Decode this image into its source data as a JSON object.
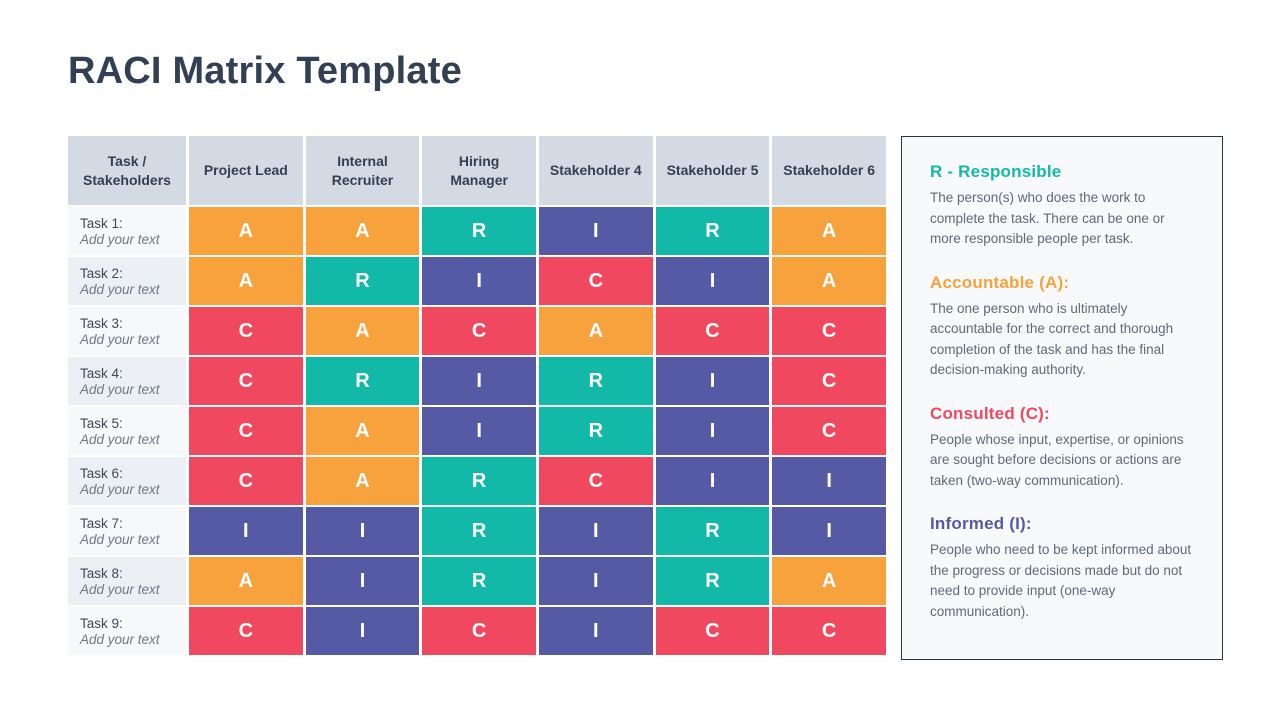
{
  "page": {
    "title": "RACI Matrix Template"
  },
  "colors": {
    "navy": "#333f52",
    "header_bg": "#d3dae3",
    "row_light": "#f7f8fa",
    "row_dark": "#eceff3",
    "body_gray": "#5f6a78",
    "card_bg": "#f7f9fb",
    "card_border": "#2b3543",
    "responsible_teal": "#13b9a8",
    "accountable_orange": "#f7a23c",
    "consulted_red": "#f0495f",
    "informed_purple": "#5659a4"
  },
  "matrix": {
    "columns": [
      "Task / Stakeholders",
      "Project Lead",
      "Internal Recruiter",
      "Hiring Manager",
      "Stakeholder 4",
      "Stakeholder 5",
      "Stakeholder 6"
    ],
    "letter_color_keys": {
      "R": "responsible_teal",
      "A": "accountable_orange",
      "C": "consulted_red",
      "I": "informed_purple"
    },
    "rows": [
      {
        "task": "Task 1:",
        "subtitle": "Add your text",
        "cells": [
          "A",
          "A",
          "R",
          "I",
          "R",
          "A"
        ]
      },
      {
        "task": "Task 2:",
        "subtitle": "Add your text",
        "cells": [
          "A",
          "R",
          "I",
          "C",
          "I",
          "A"
        ]
      },
      {
        "task": "Task 3:",
        "subtitle": "Add your text",
        "cells": [
          "C",
          "A",
          "C",
          "A",
          "C",
          "C"
        ]
      },
      {
        "task": "Task 4:",
        "subtitle": "Add your text",
        "cells": [
          "C",
          "R",
          "I",
          "R",
          "I",
          "C"
        ]
      },
      {
        "task": "Task 5:",
        "subtitle": "Add your text",
        "cells": [
          "C",
          "A",
          "I",
          "R",
          "I",
          "C"
        ]
      },
      {
        "task": "Task 6:",
        "subtitle": "Add your text",
        "cells": [
          "C",
          "A",
          "R",
          "C",
          "I",
          "I"
        ]
      },
      {
        "task": "Task 7:",
        "subtitle": "Add your text",
        "cells": [
          "I",
          "I",
          "R",
          "I",
          "R",
          "I"
        ]
      },
      {
        "task": "Task 8:",
        "subtitle": "Add your text",
        "cells": [
          "A",
          "I",
          "R",
          "I",
          "R",
          "A"
        ]
      },
      {
        "task": "Task 9:",
        "subtitle": "Add your text",
        "cells": [
          "C",
          "I",
          "C",
          "I",
          "C",
          "C"
        ]
      }
    ]
  },
  "legend": {
    "sections": [
      {
        "title": "R - Responsible",
        "color_key": "responsible_teal",
        "body": "The person(s) who does the work to complete the task. There can be one or more responsible people per task."
      },
      {
        "title": "Accountable (A):",
        "color_key": "accountable_orange",
        "body": "The one person who is ultimately accountable for the correct and thorough completion of the task and has the final decision-making authority."
      },
      {
        "title": "Consulted (C):",
        "color_key": "consulted_red",
        "body": "People whose input, expertise, or opinions are sought before decisions or actions are taken (two-way communication)."
      },
      {
        "title": "Informed (I):",
        "color_key": "informed_purple",
        "body": "People who need to be kept informed about the progress or decisions made but do not need to provide input (one-way communication)."
      }
    ]
  }
}
